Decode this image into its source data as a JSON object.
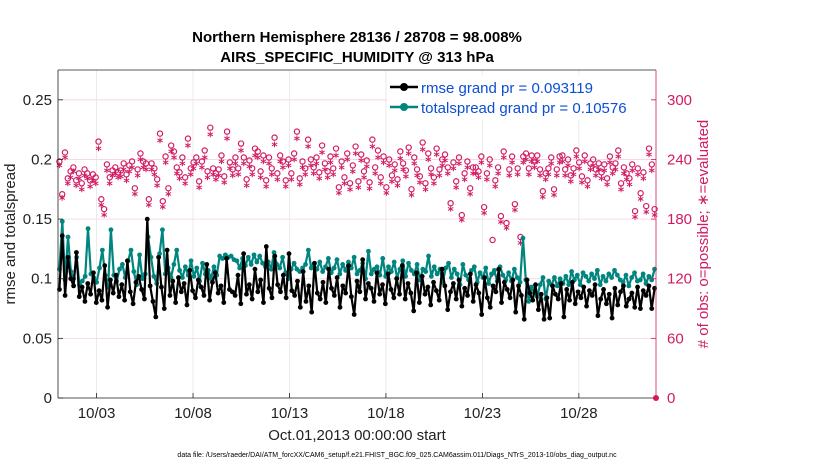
{
  "chart_data": {
    "type": "line",
    "title_line1": "Northern Hemisphere 28136 / 28708 = 98.008%",
    "title_line2": "AIRS_SPECIFIC_HUMIDITY @ 313 hPa",
    "xlabel": "Oct.01,2013 00:00:00 start",
    "ylabel_left": "rmse and totalspread",
    "ylabel_right": "# of obs: o=possible; ∗=evaluated",
    "footnote": "data file: /Users/raeder/DAI/ATM_forcXX/CAM6_setup/f.e21.FHIST_BGC.f09_025.CAM6assim.011/Diags_NTrS_2013-10/obs_diag_output.nc",
    "xlim": [
      1.0,
      32.0
    ],
    "ylim_left": [
      0,
      0.275
    ],
    "ylim_right": [
      0,
      330
    ],
    "x_ticks": [
      {
        "value": 3,
        "label": "10/03"
      },
      {
        "value": 8,
        "label": "10/08"
      },
      {
        "value": 13,
        "label": "10/13"
      },
      {
        "value": 18,
        "label": "10/18"
      },
      {
        "value": 23,
        "label": "10/23"
      },
      {
        "value": 28,
        "label": "10/28"
      }
    ],
    "y_ticks_left": [
      {
        "value": 0,
        "label": "0"
      },
      {
        "value": 0.05,
        "label": "0.05"
      },
      {
        "value": 0.1,
        "label": "0.1"
      },
      {
        "value": 0.15,
        "label": "0.15"
      },
      {
        "value": 0.2,
        "label": "0.2"
      },
      {
        "value": 0.25,
        "label": "0.25"
      }
    ],
    "y_ticks_right": [
      {
        "value": 0,
        "label": "0"
      },
      {
        "value": 60,
        "label": "60"
      },
      {
        "value": 120,
        "label": "120"
      },
      {
        "value": 180,
        "label": "180"
      },
      {
        "value": 240,
        "label": "240"
      },
      {
        "value": 300,
        "label": "300"
      }
    ],
    "legend": [
      {
        "name": "rmse grand pr = 0.093119",
        "color": "#000000"
      },
      {
        "name": "totalspread grand pr = 0.10576",
        "color": "#00857f"
      }
    ],
    "series": [
      {
        "name": "rmse",
        "color": "#000000",
        "axis": "left",
        "values": [
          0.091,
          0.136,
          0.086,
          0.118,
          0.1,
          0.094,
          0.122,
          0.085,
          0.093,
          0.081,
          0.096,
          0.087,
          0.105,
          0.08,
          0.09,
          0.082,
          0.111,
          0.076,
          0.099,
          0.088,
          0.103,
          0.085,
          0.095,
          0.082,
          0.115,
          0.089,
          0.079,
          0.097,
          0.102,
          0.091,
          0.083,
          0.15,
          0.094,
          0.081,
          0.068,
          0.118,
          0.093,
          0.075,
          0.124,
          0.086,
          0.098,
          0.08,
          0.101,
          0.089,
          0.096,
          0.078,
          0.107,
          0.09,
          0.084,
          0.099,
          0.093,
          0.086,
          0.112,
          0.082,
          0.097,
          0.105,
          0.088,
          0.094,
          0.08,
          0.117,
          0.091,
          0.089,
          0.086,
          0.103,
          0.079,
          0.121,
          0.087,
          0.095,
          0.083,
          0.108,
          0.089,
          0.099,
          0.08,
          0.127,
          0.092,
          0.084,
          0.119,
          0.095,
          0.089,
          0.103,
          0.084,
          0.121,
          0.09,
          0.086,
          0.098,
          0.076,
          0.106,
          0.081,
          0.094,
          0.072,
          0.113,
          0.088,
          0.083,
          0.097,
          0.08,
          0.108,
          0.092,
          0.086,
          0.101,
          0.076,
          0.094,
          0.088,
          0.111,
          0.085,
          0.07,
          0.098,
          0.089,
          0.116,
          0.083,
          0.096,
          0.092,
          0.081,
          0.105,
          0.087,
          0.095,
          0.079,
          0.104,
          0.091,
          0.084,
          0.1,
          0.087,
          0.111,
          0.083,
          0.096,
          0.088,
          0.073,
          0.105,
          0.08,
          0.102,
          0.087,
          0.093,
          0.078,
          0.097,
          0.09,
          0.082,
          0.108,
          0.094,
          0.074,
          0.089,
          0.096,
          0.083,
          0.099,
          0.077,
          0.092,
          0.086,
          0.104,
          0.081,
          0.095,
          0.088,
          0.07,
          0.101,
          0.084,
          0.076,
          0.094,
          0.089,
          0.108,
          0.08,
          0.097,
          0.091,
          0.084,
          0.099,
          0.072,
          0.094,
          0.086,
          0.066,
          0.099,
          0.088,
          0.082,
          0.095,
          0.074,
          0.087,
          0.066,
          0.084,
          0.067,
          0.094,
          0.087,
          0.083,
          0.096,
          0.068,
          0.091,
          0.082,
          0.097,
          0.079,
          0.089,
          0.084,
          0.093,
          0.077,
          0.09,
          0.086,
          0.095,
          0.069,
          0.083,
          0.091,
          0.079,
          0.087,
          0.067,
          0.092,
          0.078,
          0.089,
          0.094,
          0.077,
          0.083,
          0.088,
          0.076,
          0.093,
          0.075,
          0.09,
          0.086,
          0.094,
          0.075,
          0.092
        ]
      },
      {
        "name": "totalspread",
        "color": "#00857f",
        "axis": "left",
        "values": [
          0.108,
          0.148,
          0.099,
          0.135,
          0.106,
          0.1,
          0.118,
          0.095,
          0.098,
          0.102,
          0.142,
          0.104,
          0.101,
          0.097,
          0.109,
          0.124,
          0.103,
          0.093,
          0.141,
          0.103,
          0.098,
          0.108,
          0.112,
          0.101,
          0.115,
          0.124,
          0.106,
          0.095,
          0.12,
          0.1,
          0.104,
          0.135,
          0.118,
          0.102,
          0.096,
          0.121,
          0.141,
          0.104,
          0.109,
          0.101,
          0.112,
          0.124,
          0.107,
          0.101,
          0.11,
          0.103,
          0.115,
          0.102,
          0.109,
          0.098,
          0.113,
          0.104,
          0.107,
          0.1,
          0.11,
          0.103,
          0.119,
          0.117,
          0.12,
          0.118,
          0.119,
          0.116,
          0.115,
          0.109,
          0.117,
          0.111,
          0.118,
          0.112,
          0.12,
          0.114,
          0.119,
          0.113,
          0.11,
          0.114,
          0.108,
          0.122,
          0.112,
          0.109,
          0.118,
          0.105,
          0.1,
          0.108,
          0.113,
          0.108,
          0.106,
          0.109,
          0.112,
          0.124,
          0.109,
          0.112,
          0.108,
          0.114,
          0.106,
          0.11,
          0.117,
          0.105,
          0.109,
          0.116,
          0.104,
          0.112,
          0.107,
          0.114,
          0.109,
          0.118,
          0.104,
          0.107,
          0.113,
          0.1,
          0.123,
          0.104,
          0.108,
          0.11,
          0.103,
          0.117,
          0.102,
          0.11,
          0.106,
          0.114,
          0.101,
          0.108,
          0.115,
          0.102,
          0.113,
          0.107,
          0.104,
          0.112,
          0.099,
          0.108,
          0.106,
          0.119,
          0.102,
          0.11,
          0.104,
          0.108,
          0.097,
          0.109,
          0.113,
          0.101,
          0.108,
          0.104,
          0.095,
          0.112,
          0.103,
          0.099,
          0.107,
          0.11,
          0.097,
          0.105,
          0.101,
          0.109,
          0.096,
          0.104,
          0.107,
          0.098,
          0.11,
          0.103,
          0.099,
          0.105,
          0.098,
          0.108,
          0.101,
          0.097,
          0.134,
          0.099,
          0.081,
          0.093,
          0.088,
          0.085,
          0.095,
          0.101,
          0.083,
          0.098,
          0.095,
          0.101,
          0.094,
          0.1,
          0.096,
          0.102,
          0.095,
          0.106,
          0.099,
          0.103,
          0.095,
          0.105,
          0.102,
          0.098,
          0.104,
          0.1,
          0.107,
          0.095,
          0.102,
          0.098,
          0.104,
          0.101,
          0.107,
          0.103,
          0.099,
          0.097,
          0.103,
          0.094,
          0.101,
          0.105,
          0.098,
          0.099,
          0.104,
          0.096,
          0.102,
          0.099,
          0.108
        ]
      }
    ],
    "obs_possible": {
      "name": "possible (o)",
      "color": "#d21b63",
      "axis": "right",
      "values": [
        238,
        205,
        247,
        221,
        228,
        232,
        219,
        226,
        216,
        230,
        226,
        219,
        225,
        222,
        258,
        200,
        190,
        235,
        222,
        229,
        232,
        227,
        229,
        236,
        225,
        234,
        238,
        211,
        230,
        246,
        238,
        236,
        200,
        236,
        231,
        220,
        266,
        198,
        243,
        211,
        254,
        248,
        232,
        227,
        242,
        222,
        261,
        231,
        237,
        242,
        218,
        238,
        249,
        228,
        272,
        231,
        226,
        230,
        244,
        223,
        268,
        237,
        230,
        242,
        231,
        256,
        242,
        220,
        239,
        231,
        251,
        248,
        228,
        244,
        219,
        242,
        231,
        262,
        226,
        244,
        238,
        219,
        240,
        226,
        246,
        268,
        221,
        238,
        231,
        260,
        240,
        232,
        242,
        227,
        254,
        236,
        228,
        243,
        231,
        251,
        212,
        238,
        222,
        246,
        216,
        234,
        253,
        218,
        245,
        228,
        239,
        217,
        260,
        232,
        249,
        222,
        243,
        212,
        240,
        224,
        235,
        220,
        248,
        236,
        229,
        252,
        210,
        242,
        230,
        223,
        257,
        216,
        246,
        231,
        222,
        251,
        230,
        240,
        245,
        232,
        196,
        237,
        218,
        242,
        184,
        226,
        238,
        211,
        232,
        232,
        228,
        243,
        192,
        226,
        240,
        159,
        219,
        232,
        183,
        248,
        176,
        230,
        243,
        195,
        231,
        162,
        243,
        246,
        231,
        244,
        238,
        244,
        230,
        208,
        226,
        231,
        242,
        210,
        230,
        243,
        244,
        230,
        240,
        224,
        231,
        249,
        237,
        223,
        244,
        219,
        236,
        240,
        230,
        236,
        227,
        235,
        221,
        243,
        232,
        236,
        249,
        216,
        232,
        226,
        221,
        235,
        188,
        231,
        206,
        227,
        193,
        251,
        235,
        190
      ]
    },
    "obs_evaluated": {
      "name": "evaluated (∗)",
      "color": "#d21b63",
      "axis": "right",
      "values": [
        233,
        200,
        241,
        215,
        221,
        227,
        213,
        220,
        209,
        223,
        220,
        212,
        218,
        215,
        250,
        193,
        183,
        228,
        215,
        223,
        225,
        221,
        222,
        229,
        218,
        227,
        231,
        204,
        223,
        239,
        231,
        229,
        193,
        229,
        224,
        213,
        258,
        191,
        236,
        204,
        247,
        241,
        225,
        220,
        235,
        215,
        253,
        224,
        230,
        235,
        211,
        231,
        241,
        221,
        264,
        224,
        219,
        223,
        237,
        216,
        260,
        230,
        223,
        235,
        224,
        248,
        235,
        213,
        232,
        224,
        243,
        241,
        221,
        237,
        212,
        235,
        224,
        254,
        219,
        237,
        231,
        212,
        233,
        219,
        239,
        260,
        214,
        231,
        224,
        252,
        233,
        225,
        235,
        220,
        246,
        229,
        221,
        236,
        224,
        243,
        205,
        231,
        215,
        239,
        209,
        227,
        245,
        211,
        238,
        221,
        232,
        210,
        252,
        225,
        241,
        215,
        236,
        205,
        233,
        217,
        228,
        213,
        240,
        229,
        222,
        245,
        203,
        235,
        223,
        216,
        249,
        209,
        239,
        224,
        215,
        244,
        223,
        233,
        238,
        225,
        189,
        230,
        211,
        235,
        178,
        219,
        231,
        204,
        225,
        225,
        221,
        236,
        185,
        219,
        233,
        124,
        212,
        225,
        176,
        241,
        170,
        223,
        236,
        188,
        224,
        155,
        236,
        239,
        224,
        237,
        231,
        237,
        223,
        201,
        219,
        224,
        235,
        203,
        223,
        236,
        237,
        223,
        233,
        217,
        224,
        242,
        230,
        216,
        237,
        212,
        229,
        233,
        223,
        229,
        220,
        228,
        214,
        236,
        225,
        229,
        242,
        209,
        225,
        219,
        214,
        228,
        181,
        224,
        199,
        220,
        186,
        244,
        228,
        183
      ]
    }
  }
}
